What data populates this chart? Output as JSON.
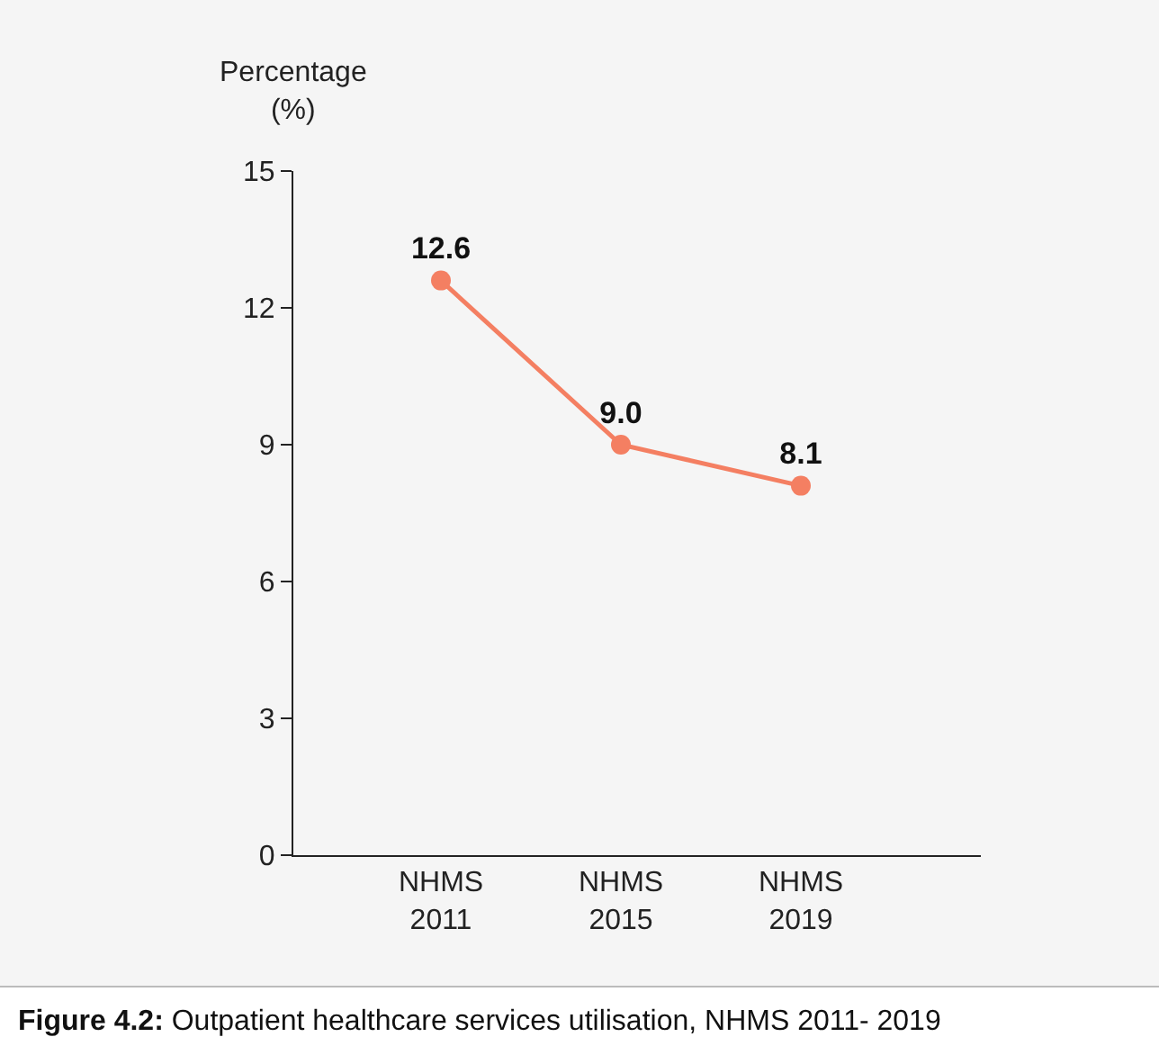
{
  "chart_data": {
    "type": "line",
    "ylabel": "Percentage (%)",
    "categories": [
      "NHMS 2011",
      "NHMS 2015",
      "NHMS 2019"
    ],
    "series": [
      {
        "color": "#f47f62",
        "values": [
          12.6,
          9.0,
          8.1
        ]
      }
    ],
    "value_labels": [
      "12.6",
      "9.0",
      "8.1"
    ],
    "ylim": [
      0,
      15
    ],
    "yticks": [
      0,
      3,
      6,
      9,
      12,
      15
    ],
    "grid": false,
    "marker": "circle",
    "line_style": "solid",
    "annotations": [
      "Figure 4.2: Outpatient healthcare services utilisation, NHMS 2011- 2019"
    ]
  }
}
